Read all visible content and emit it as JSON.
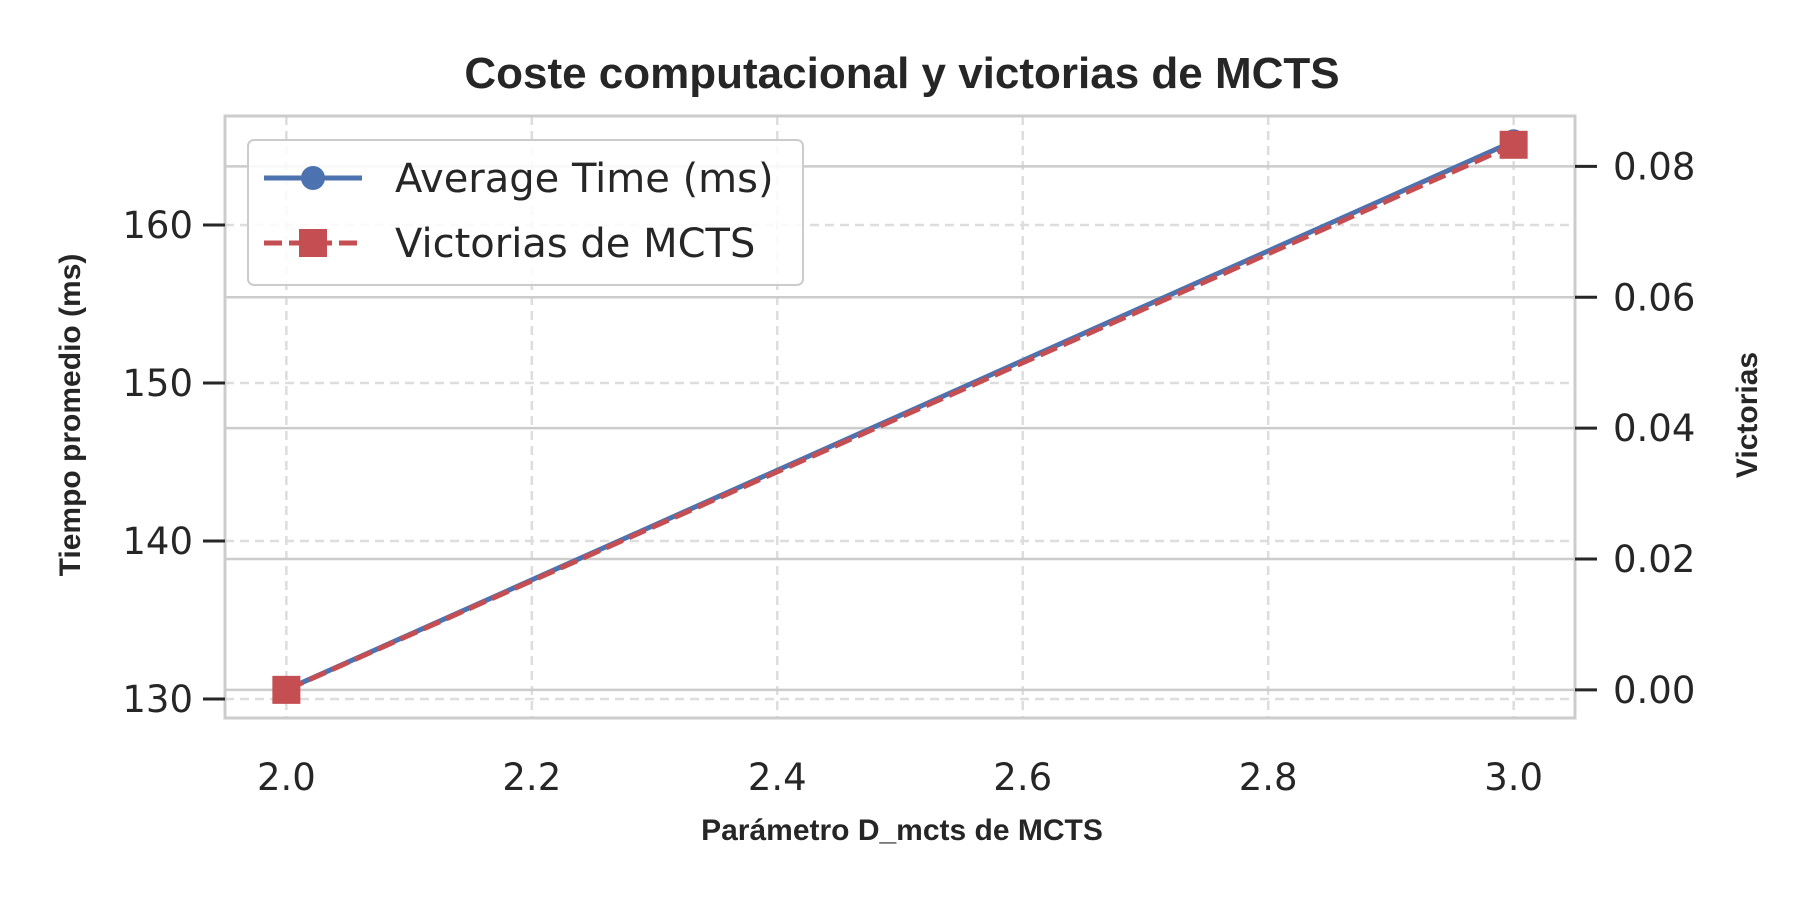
{
  "chart_data": {
    "type": "line",
    "title": "Coste computacional y victorias de MCTS",
    "xlabel": "Parámetro D_mcts de MCTS",
    "ylabel": "Tiempo promedio (ms)",
    "y2label": "Victorias",
    "x": [
      2.0,
      3.0
    ],
    "xlim": [
      1.95,
      3.05
    ],
    "ylim": [
      128.8,
      166.9
    ],
    "y2lim": [
      -0.0043,
      0.0877
    ],
    "xticks": [
      "2.0",
      "2.2",
      "2.4",
      "2.6",
      "2.8",
      "3.0"
    ],
    "yticks": [
      "130",
      "140",
      "150",
      "160"
    ],
    "y2ticks": [
      "0.00",
      "0.02",
      "0.04",
      "0.06",
      "0.08"
    ],
    "grid": true,
    "legend_position": "top-left",
    "series": [
      {
        "name": "Average Time (ms)",
        "axis": "left",
        "values": [
          130.6,
          165.3
        ],
        "color": "#4c72b0",
        "marker": "circle",
        "linestyle": "solid"
      },
      {
        "name": "Victorias de MCTS",
        "axis": "right",
        "values": [
          0.0,
          0.0833
        ],
        "color": "#c44e52",
        "marker": "square",
        "linestyle": "dashed"
      }
    ]
  }
}
